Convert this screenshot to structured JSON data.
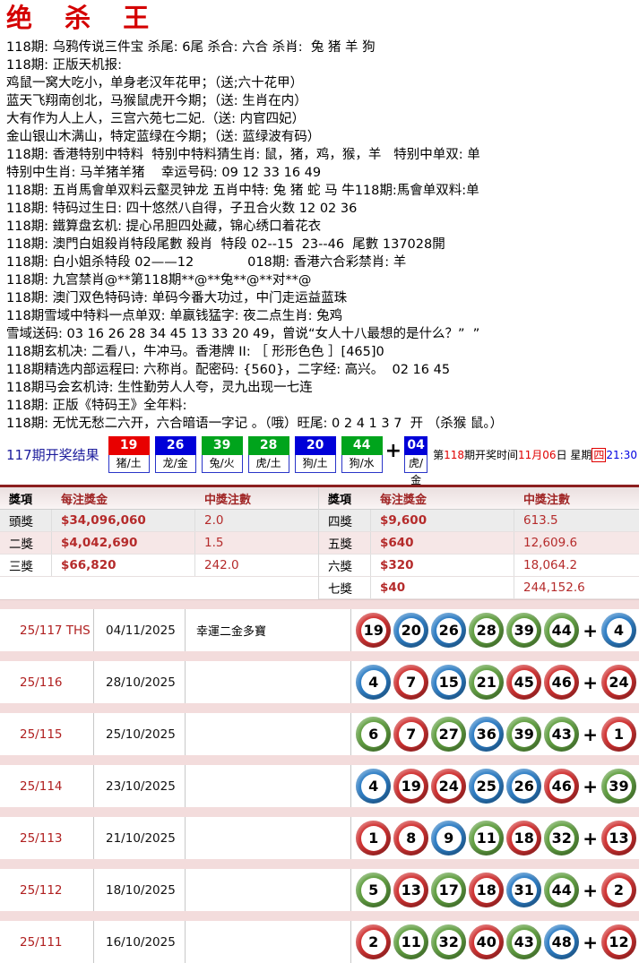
{
  "title": "绝 杀 王",
  "lines": [
    "118期: 乌鸦传说三件宝 杀尾: 6尾 杀合: 六合 杀肖:  兔 猪 羊 狗",
    "118期: 正版天机报:",
    "鸡鼠一窝大吃小，单身老汉年花甲；（送;六十花甲）",
    "蓝天飞翔南创北，马猴鼠虎开今期；（送: 生肖在内）",
    "大有作为人上人，三宫六苑七二妃.（送: 内官四妃）",
    "金山银山木满山，特定蓝绿在今期；（送: 蓝绿波有码）",
    "118期: 香港特别中特料  特别中特料猜生肖: 鼠，猪，鸡，猴，羊   特别中单双: 单",
    "特别中生肖: 马羊猪羊猪    幸运号码: 09 12 33 16 49",
    "118期: 五肖馬會单双料云壑灵钟龙 五肖中特: 兔 猪 蛇 马 牛118期:馬會单双料:单",
    "118期: 特码过生日: 四十悠然八自得，子丑合火数 12 02 36",
    "118期: 鐵算盘玄机: 提心吊胆四处藏，锦心绣口着花衣",
    "118期: 澳門白姐殺肖特段尾數 殺肖  特段 02--15  23--46  尾數 137028開",
    "118期: 白小姐杀特段 02——12             018期: 香港六合彩禁肖: 羊",
    "118期: 九宫禁肖@**第118期**@**兔**@**对**@",
    "118期: 澳门双色特码诗: 单码今番大功过，中门走运益蓝珠",
    "118期雪域中特料一点单双: 单赢钱猛字: 夜二点生肖: 兔鸡",
    "雪域送码: 03 16 26 28 34 45 13 33 20 49，曾说“女人十八最想的是什么？”  ”",
    "118期玄机决: 二看八，牛冲马。香港牌 II: ［ 形形色色 ］[465]0",
    "118期精选内部运程曰: 六称肖。配密码: {560}，二字经: 高兴。  02 16 45",
    "118期马会玄机诗: 生性勤劳人人夸，灵九出现一七连",
    "118期: 正版《特码王》全年料:",
    "118期: 无忧无愁二六开，六合暗语一字记 。（哦）旺尾: 0 2 4 1 3 7  开 （杀猴 鼠。）"
  ],
  "last_result": {
    "label": "117期开奖结果",
    "badges": [
      {
        "num": "19",
        "label": "猪/土",
        "color": "red"
      },
      {
        "num": "26",
        "label": "龙/金",
        "color": "blue"
      },
      {
        "num": "39",
        "label": "兔/火",
        "color": "green"
      },
      {
        "num": "28",
        "label": "虎/土",
        "color": "green"
      },
      {
        "num": "20",
        "label": "狗/土",
        "color": "blue"
      },
      {
        "num": "44",
        "label": "狗/水",
        "color": "green"
      }
    ],
    "plus": "+",
    "bonus": {
      "num": "04",
      "label": "虎/金",
      "color": "blue"
    },
    "next_draw": {
      "prefix": "第",
      "issue": "118",
      "mid": "期开奖时间",
      "date": "11月06",
      "suffix": "日 星期",
      "weekday": "四",
      "time": "21:30"
    }
  },
  "prize_table": {
    "headers": [
      "獎項",
      "每注獎金",
      "中獎注數"
    ],
    "left_rows": [
      {
        "name": "頭獎",
        "amount": "$34,096,060",
        "count": "2.0"
      },
      {
        "name": "二獎",
        "amount": "$4,042,690",
        "count": "1.5"
      },
      {
        "name": "三獎",
        "amount": "$66,820",
        "count": "242.0"
      }
    ],
    "right_rows": [
      {
        "name": "四獎",
        "amount": "$9,600",
        "count": "613.5"
      },
      {
        "name": "五獎",
        "amount": "$640",
        "count": "12,609.6"
      },
      {
        "name": "六獎",
        "amount": "$320",
        "count": "18,064.2"
      },
      {
        "name": "七獎",
        "amount": "$40",
        "count": "244,152.6"
      }
    ]
  },
  "history": {
    "plus": "+",
    "rows": [
      {
        "no": "25/117 THS",
        "date": "04/11/2025",
        "remark": "幸運二金多寶",
        "balls": [
          {
            "n": "19",
            "color": "red"
          },
          {
            "n": "20",
            "color": "blue"
          },
          {
            "n": "26",
            "color": "blue"
          },
          {
            "n": "28",
            "color": "green"
          },
          {
            "n": "39",
            "color": "green"
          },
          {
            "n": "44",
            "color": "green"
          }
        ],
        "bonus": {
          "n": "4",
          "color": "blue"
        }
      },
      {
        "no": "25/116",
        "date": "28/10/2025",
        "remark": "",
        "balls": [
          {
            "n": "4",
            "color": "blue"
          },
          {
            "n": "7",
            "color": "red"
          },
          {
            "n": "15",
            "color": "blue"
          },
          {
            "n": "21",
            "color": "green"
          },
          {
            "n": "45",
            "color": "red"
          },
          {
            "n": "46",
            "color": "red"
          }
        ],
        "bonus": {
          "n": "24",
          "color": "red"
        }
      },
      {
        "no": "25/115",
        "date": "25/10/2025",
        "remark": "",
        "balls": [
          {
            "n": "6",
            "color": "green"
          },
          {
            "n": "7",
            "color": "red"
          },
          {
            "n": "27",
            "color": "green"
          },
          {
            "n": "36",
            "color": "blue"
          },
          {
            "n": "39",
            "color": "green"
          },
          {
            "n": "43",
            "color": "green"
          }
        ],
        "bonus": {
          "n": "1",
          "color": "red"
        }
      },
      {
        "no": "25/114",
        "date": "23/10/2025",
        "remark": "",
        "balls": [
          {
            "n": "4",
            "color": "blue"
          },
          {
            "n": "19",
            "color": "red"
          },
          {
            "n": "24",
            "color": "red"
          },
          {
            "n": "25",
            "color": "blue"
          },
          {
            "n": "26",
            "color": "blue"
          },
          {
            "n": "46",
            "color": "red"
          }
        ],
        "bonus": {
          "n": "39",
          "color": "green"
        }
      },
      {
        "no": "25/113",
        "date": "21/10/2025",
        "remark": "",
        "balls": [
          {
            "n": "1",
            "color": "red"
          },
          {
            "n": "8",
            "color": "red"
          },
          {
            "n": "9",
            "color": "blue"
          },
          {
            "n": "11",
            "color": "green"
          },
          {
            "n": "18",
            "color": "red"
          },
          {
            "n": "32",
            "color": "green"
          }
        ],
        "bonus": {
          "n": "13",
          "color": "red"
        }
      },
      {
        "no": "25/112",
        "date": "18/10/2025",
        "remark": "",
        "balls": [
          {
            "n": "5",
            "color": "green"
          },
          {
            "n": "13",
            "color": "red"
          },
          {
            "n": "17",
            "color": "green"
          },
          {
            "n": "18",
            "color": "red"
          },
          {
            "n": "31",
            "color": "blue"
          },
          {
            "n": "44",
            "color": "green"
          }
        ],
        "bonus": {
          "n": "2",
          "color": "red"
        }
      },
      {
        "no": "25/111",
        "date": "16/10/2025",
        "remark": "",
        "balls": [
          {
            "n": "2",
            "color": "red"
          },
          {
            "n": "11",
            "color": "green"
          },
          {
            "n": "32",
            "color": "green"
          },
          {
            "n": "40",
            "color": "red"
          },
          {
            "n": "43",
            "color": "green"
          },
          {
            "n": "48",
            "color": "blue"
          }
        ],
        "bonus": {
          "n": "12",
          "color": "red"
        }
      }
    ]
  },
  "colors": {
    "title_red": "#d40000",
    "badge_red": "#e80000",
    "badge_blue": "#0000d8",
    "badge_green": "#00a41c",
    "ball_red": "#cf2f2f",
    "ball_blue": "#2b7cc4",
    "ball_green": "#5f9e3f",
    "prize_header_red": "#a02525",
    "prize_value_red": "#b52b2b",
    "draw_no_red": "#b02020",
    "time_blue": "#0000e0",
    "result_label_blue": "#1c1c9c"
  }
}
